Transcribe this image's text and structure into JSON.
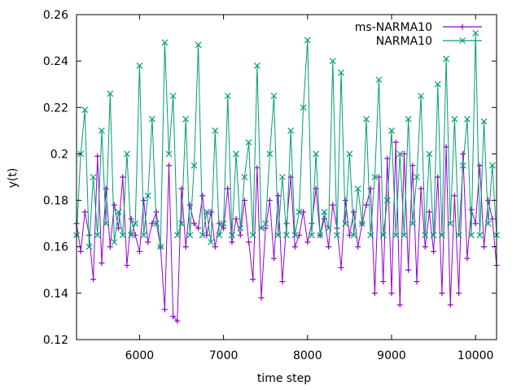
{
  "chart_data": {
    "type": "line",
    "title": "",
    "xlabel": "time step",
    "ylabel": "y(t)",
    "xlim": [
      5250,
      10250
    ],
    "ylim": [
      0.12,
      0.26
    ],
    "x_ticks": [
      6000,
      7000,
      8000,
      9000,
      10000
    ],
    "x_tick_labels": [
      "6000",
      "7000",
      "8000",
      "9000",
      "10000"
    ],
    "y_ticks": [
      0.12,
      0.14,
      0.16,
      0.18,
      0.2,
      0.22,
      0.24,
      0.26
    ],
    "y_tick_labels": [
      "0.12",
      "0.14",
      "0.16",
      "0.18",
      "0.2",
      "0.22",
      "0.24",
      "0.26"
    ],
    "grid": false,
    "legend_position": "top-right",
    "series": [
      {
        "name": "ms-NARMA10",
        "color": "#9400d3",
        "marker": "plus",
        "x": [
          5250,
          5300,
          5350,
          5400,
          5450,
          5500,
          5550,
          5600,
          5650,
          5700,
          5750,
          5800,
          5850,
          5900,
          5950,
          6000,
          6050,
          6100,
          6150,
          6200,
          6250,
          6300,
          6350,
          6400,
          6450,
          6500,
          6550,
          6600,
          6650,
          6700,
          6750,
          6800,
          6850,
          6900,
          6950,
          7000,
          7050,
          7100,
          7150,
          7200,
          7250,
          7300,
          7350,
          7400,
          7450,
          7500,
          7550,
          7600,
          7650,
          7700,
          7750,
          7800,
          7850,
          7900,
          7950,
          8000,
          8050,
          8100,
          8150,
          8200,
          8250,
          8300,
          8350,
          8400,
          8450,
          8500,
          8550,
          8600,
          8650,
          8700,
          8750,
          8800,
          8850,
          8900,
          8950,
          9000,
          9050,
          9100,
          9150,
          9200,
          9250,
          9300,
          9350,
          9400,
          9450,
          9500,
          9550,
          9600,
          9650,
          9700,
          9750,
          9800,
          9850,
          9900,
          9950,
          10000,
          10050,
          10100,
          10150,
          10200,
          10250
        ],
        "y": [
          0.17,
          0.158,
          0.175,
          0.165,
          0.146,
          0.199,
          0.153,
          0.185,
          0.16,
          0.178,
          0.168,
          0.19,
          0.152,
          0.172,
          0.165,
          0.158,
          0.18,
          0.162,
          0.17,
          0.175,
          0.16,
          0.133,
          0.195,
          0.13,
          0.128,
          0.185,
          0.16,
          0.178,
          0.17,
          0.168,
          0.182,
          0.165,
          0.175,
          0.16,
          0.17,
          0.168,
          0.185,
          0.162,
          0.172,
          0.165,
          0.18,
          0.162,
          0.146,
          0.194,
          0.138,
          0.168,
          0.18,
          0.155,
          0.182,
          0.145,
          0.17,
          0.19,
          0.16,
          0.165,
          0.175,
          0.162,
          0.17,
          0.185,
          0.165,
          0.172,
          0.16,
          0.178,
          0.168,
          0.151,
          0.18,
          0.165,
          0.175,
          0.16,
          0.17,
          0.178,
          0.185,
          0.14,
          0.19,
          0.145,
          0.198,
          0.14,
          0.205,
          0.135,
          0.2,
          0.15,
          0.195,
          0.145,
          0.185,
          0.16,
          0.175,
          0.158,
          0.19,
          0.14,
          0.203,
          0.135,
          0.182,
          0.14,
          0.2,
          0.155,
          0.176,
          0.17,
          0.195,
          0.16,
          0.18,
          0.172,
          0.152
        ]
      },
      {
        "name": "NARMA10",
        "color": "#009e73",
        "marker": "cross",
        "x": [
          5250,
          5300,
          5350,
          5400,
          5450,
          5500,
          5550,
          5600,
          5650,
          5700,
          5750,
          5800,
          5850,
          5900,
          5950,
          6000,
          6050,
          6100,
          6150,
          6200,
          6250,
          6300,
          6350,
          6400,
          6450,
          6500,
          6550,
          6600,
          6650,
          6700,
          6750,
          6800,
          6850,
          6900,
          6950,
          7000,
          7050,
          7100,
          7150,
          7200,
          7250,
          7300,
          7350,
          7400,
          7450,
          7500,
          7550,
          7600,
          7650,
          7700,
          7750,
          7800,
          7850,
          7900,
          7950,
          8000,
          8050,
          8100,
          8150,
          8200,
          8250,
          8300,
          8350,
          8400,
          8450,
          8500,
          8550,
          8600,
          8650,
          8700,
          8750,
          8800,
          8850,
          8900,
          8950,
          9000,
          9050,
          9100,
          9150,
          9200,
          9250,
          9300,
          9350,
          9400,
          9450,
          9500,
          9550,
          9600,
          9650,
          9700,
          9750,
          9800,
          9850,
          9900,
          9950,
          10000,
          10050,
          10100,
          10150,
          10200,
          10250
        ],
        "y": [
          0.165,
          0.2,
          0.219,
          0.16,
          0.19,
          0.165,
          0.21,
          0.17,
          0.226,
          0.162,
          0.175,
          0.165,
          0.2,
          0.165,
          0.17,
          0.238,
          0.165,
          0.182,
          0.215,
          0.17,
          0.16,
          0.248,
          0.2,
          0.225,
          0.165,
          0.17,
          0.215,
          0.165,
          0.195,
          0.247,
          0.165,
          0.175,
          0.162,
          0.21,
          0.165,
          0.17,
          0.225,
          0.165,
          0.2,
          0.168,
          0.19,
          0.205,
          0.165,
          0.238,
          0.168,
          0.17,
          0.2,
          0.225,
          0.165,
          0.19,
          0.165,
          0.21,
          0.165,
          0.175,
          0.22,
          0.249,
          0.165,
          0.2,
          0.165,
          0.175,
          0.168,
          0.24,
          0.165,
          0.235,
          0.17,
          0.2,
          0.165,
          0.185,
          0.17,
          0.215,
          0.165,
          0.19,
          0.232,
          0.165,
          0.18,
          0.21,
          0.165,
          0.2,
          0.165,
          0.215,
          0.17,
          0.19,
          0.225,
          0.165,
          0.2,
          0.165,
          0.23,
          0.165,
          0.241,
          0.17,
          0.215,
          0.165,
          0.195,
          0.215,
          0.165,
          0.252,
          0.165,
          0.214,
          0.17,
          0.195,
          0.165
        ]
      }
    ]
  }
}
